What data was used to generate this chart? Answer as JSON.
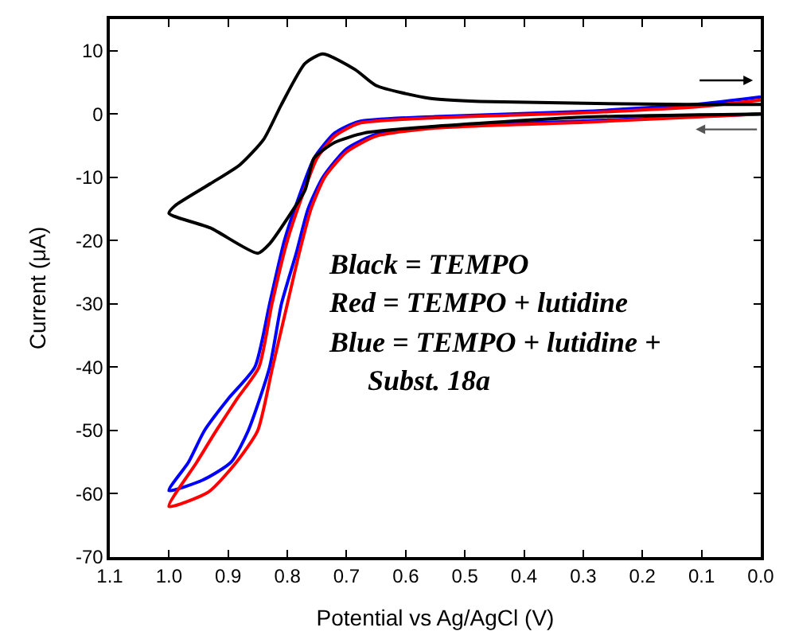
{
  "chart_data": {
    "type": "line",
    "xlabel": "Potential vs Ag/AgCl (V)",
    "ylabel": "Current (μA)",
    "xlim": [
      1.1,
      0.0
    ],
    "xticks": [
      1.1,
      {
        "value": 1.0,
        "label": "1.0"
      },
      0.9,
      0.8,
      0.7,
      0.6,
      0.5,
      0.4,
      0.3,
      0.2,
      0.1,
      {
        "value": 0.0,
        "label": "0.0"
      }
    ],
    "ylim": [
      -70,
      15
    ],
    "yticks": [
      -70,
      -60,
      -50,
      -40,
      -30,
      -20,
      -10,
      0,
      10
    ],
    "marker": "none",
    "line_style": "solid",
    "annotations": [
      "Black = TEMPO",
      "Red = TEMPO + lutidine",
      "Blue = TEMPO + lutidine +",
      "Subst. 18a"
    ],
    "series": [
      {
        "color": "#000000",
        "x": [
          0,
          0.3,
          0.56,
          0.67,
          0.72,
          0.755,
          0.77,
          0.8,
          0.83,
          0.85,
          0.93,
          1.0,
          0.99,
          0.93,
          0.88,
          0.84,
          0.81,
          0.77,
          0.74,
          0.685,
          0.65,
          0.56,
          0.475,
          0.124,
          0
        ],
        "values": [
          0,
          -0.5,
          -2,
          -3,
          -4.5,
          -7,
          -12,
          -16.5,
          -20.5,
          -22,
          -18,
          -15.7,
          -14.5,
          -11,
          -8,
          -4,
          1.5,
          8,
          9.5,
          7,
          4.5,
          2.5,
          2,
          1.5,
          1.5
        ]
      },
      {
        "color": "#ff0000",
        "x": [
          0,
          0.3,
          0.55,
          0.65,
          0.7,
          0.737,
          0.76,
          0.78,
          0.8,
          0.825,
          0.85,
          0.886,
          0.933,
          1.0,
          0.953,
          0.92,
          0.885,
          0.848,
          0.826,
          0.8,
          0.775,
          0.75,
          0.72,
          0.68,
          0.55,
          0.3,
          0.1,
          0
        ],
        "values": [
          0,
          -1.3,
          -2.2,
          -3.5,
          -6,
          -10,
          -15,
          -22,
          -30,
          -40,
          -50,
          -55,
          -59.7,
          -62,
          -55,
          -50,
          -45,
          -40,
          -30,
          -20,
          -13,
          -7,
          -3.5,
          -1.5,
          -0.6,
          0.2,
          1.2,
          2.2
        ]
      },
      {
        "color": "#0000ff",
        "x": [
          0,
          0.3,
          0.55,
          0.65,
          0.7,
          0.74,
          0.765,
          0.785,
          0.81,
          0.83,
          0.866,
          0.895,
          0.94,
          1.0,
          0.967,
          0.94,
          0.9,
          0.855,
          0.83,
          0.805,
          0.78,
          0.755,
          0.72,
          0.68,
          0.55,
          0.3,
          0.1,
          0
        ],
        "values": [
          0,
          -1.1,
          -2,
          -3.2,
          -5.5,
          -10,
          -15,
          -22,
          -30,
          -40,
          -50,
          -55,
          -57.7,
          -59.5,
          -55,
          -50,
          -45,
          -40,
          -30,
          -20,
          -13,
          -7,
          -3,
          -1.2,
          -0.4,
          0.4,
          1.6,
          2.7
        ]
      }
    ]
  }
}
